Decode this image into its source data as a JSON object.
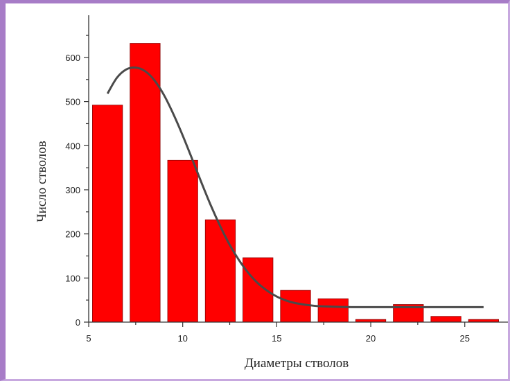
{
  "chart_data": {
    "type": "bar",
    "xlabel": "Диаметры стволов",
    "ylabel": "Число стволов",
    "xlim": [
      5,
      27
    ],
    "ylim": [
      0,
      680
    ],
    "x_ticks": [
      5,
      10,
      15,
      20,
      25
    ],
    "y_ticks": [
      0,
      100,
      200,
      300,
      400,
      500,
      600
    ],
    "bar_width": 1.6,
    "x": [
      6,
      8,
      10,
      12,
      14,
      16,
      18,
      20,
      22,
      24,
      26
    ],
    "values": [
      492,
      632,
      367,
      232,
      146,
      72,
      53,
      6,
      40,
      13,
      6
    ],
    "bar_color": "#ff0000",
    "bar_edge_color": "#8b0000",
    "fit_curve": {
      "color": "#4a4a4a",
      "x": [
        6,
        6.5,
        7,
        7.5,
        8,
        8.5,
        9,
        9.5,
        10,
        10.5,
        11,
        11.5,
        12,
        12.5,
        13,
        13.5,
        14,
        14.5,
        15,
        15.5,
        16,
        17,
        18,
        19,
        20,
        21,
        22,
        23,
        24,
        25,
        26
      ],
      "y": [
        518,
        554,
        573,
        577,
        569,
        548,
        515,
        472,
        423,
        370,
        316,
        264,
        217,
        175,
        140,
        111,
        88,
        71,
        58,
        49,
        43,
        37,
        35,
        34,
        34,
        34,
        34,
        34,
        34,
        34,
        34
      ]
    },
    "grid": false,
    "legend": "none"
  }
}
